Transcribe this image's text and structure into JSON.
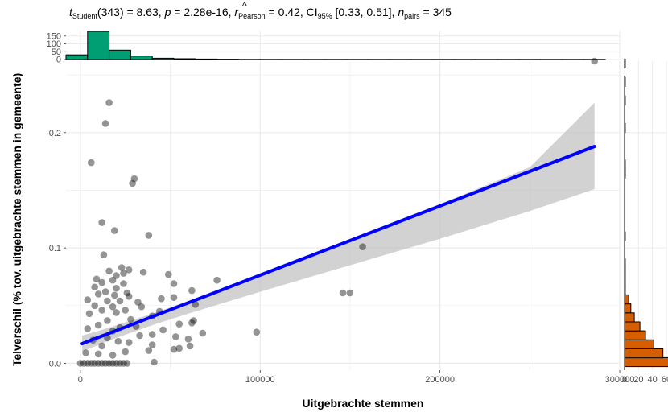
{
  "subtitle": {
    "t_label": "t",
    "t_sub": "Student",
    "t_df": "(343) = 8.63, ",
    "p_label": "p",
    "p_value": " = 2.28e-16, ",
    "r_label": "r",
    "r_hat": "^",
    "r_sub": "Pearson",
    "r_value": " = 0.42, CI",
    "ci_sub": "95%",
    "ci_value": " [0.33, 0.51], ",
    "n_label": "n",
    "n_sub": "pairs",
    "n_value": " = 345"
  },
  "colors": {
    "points": "#000000",
    "line": "#0000FF",
    "ribbon": "#bfbfbf",
    "hist_top": "#009E73",
    "hist_right": "#D55E00",
    "grid": "#ebebeb"
  },
  "chart_data": [
    {
      "type": "scatter",
      "xlabel": "Uitgebrachte stemmen",
      "ylabel": "Telverschil (% tov. uitgebrachte stemmen in gemeente)",
      "xlim": [
        -8000,
        300000
      ],
      "ylim": [
        -0.006,
        0.262
      ],
      "x_ticks": [
        0,
        100000,
        200000,
        300000
      ],
      "x_tick_labels": [
        "0",
        "100000",
        "200000",
        "300000"
      ],
      "y_ticks": [
        0.0,
        0.1,
        0.2
      ],
      "y_tick_labels": [
        "0.0",
        "0.1",
        "0.2"
      ],
      "grid": true,
      "points": [
        [
          286000,
          0.262
        ],
        [
          16000,
          0.226
        ],
        [
          14000,
          0.208
        ],
        [
          6000,
          0.174
        ],
        [
          30000,
          0.16
        ],
        [
          29000,
          0.156
        ],
        [
          12000,
          0.122
        ],
        [
          19000,
          0.115
        ],
        [
          38000,
          0.111
        ],
        [
          157000,
          0.101
        ],
        [
          13000,
          0.094
        ],
        [
          23000,
          0.083
        ],
        [
          27000,
          0.081
        ],
        [
          16000,
          0.08
        ],
        [
          35000,
          0.079
        ],
        [
          24000,
          0.078
        ],
        [
          49000,
          0.077
        ],
        [
          20000,
          0.076
        ],
        [
          9000,
          0.073
        ],
        [
          18000,
          0.072
        ],
        [
          76000,
          0.072
        ],
        [
          12000,
          0.07
        ],
        [
          24000,
          0.069
        ],
        [
          52000,
          0.069
        ],
        [
          8000,
          0.066
        ],
        [
          20000,
          0.065
        ],
        [
          62000,
          0.063
        ],
        [
          14000,
          0.062
        ],
        [
          26000,
          0.061
        ],
        [
          146000,
          0.061
        ],
        [
          150000,
          0.061
        ],
        [
          10000,
          0.06
        ],
        [
          19000,
          0.059
        ],
        [
          27000,
          0.058
        ],
        [
          52000,
          0.057
        ],
        [
          45000,
          0.056
        ],
        [
          4000,
          0.055
        ],
        [
          15000,
          0.054
        ],
        [
          22000,
          0.054
        ],
        [
          32000,
          0.053
        ],
        [
          64000,
          0.051
        ],
        [
          8000,
          0.05
        ],
        [
          18000,
          0.049
        ],
        [
          34000,
          0.049
        ],
        [
          12000,
          0.046
        ],
        [
          25000,
          0.046
        ],
        [
          44000,
          0.045
        ],
        [
          20000,
          0.044
        ],
        [
          5000,
          0.043
        ],
        [
          40000,
          0.041
        ],
        [
          28000,
          0.038
        ],
        [
          15000,
          0.037
        ],
        [
          63000,
          0.037
        ],
        [
          62000,
          0.035
        ],
        [
          55000,
          0.034
        ],
        [
          10000,
          0.033
        ],
        [
          31000,
          0.032
        ],
        [
          22000,
          0.031
        ],
        [
          4000,
          0.03
        ],
        [
          46000,
          0.029
        ],
        [
          18000,
          0.028
        ],
        [
          68000,
          0.026
        ],
        [
          98000,
          0.027
        ],
        [
          40000,
          0.025
        ],
        [
          33000,
          0.024
        ],
        [
          53000,
          0.023
        ],
        [
          15000,
          0.022
        ],
        [
          60000,
          0.021
        ],
        [
          7000,
          0.02
        ],
        [
          21000,
          0.019
        ],
        [
          27000,
          0.018
        ],
        [
          40000,
          0.016
        ],
        [
          61000,
          0.015
        ],
        [
          12000,
          0.015
        ],
        [
          55000,
          0.013
        ],
        [
          52000,
          0.012
        ],
        [
          38000,
          0.011
        ],
        [
          25000,
          0.01
        ],
        [
          3000,
          0.009
        ],
        [
          10000,
          0.008
        ],
        [
          18000,
          0.007
        ],
        [
          41000,
          0.001
        ],
        [
          0,
          0.0
        ],
        [
          2000,
          0.0
        ],
        [
          4000,
          0.0
        ],
        [
          6000,
          0.0
        ],
        [
          8000,
          0.0
        ],
        [
          10000,
          0.0
        ],
        [
          12000,
          0.0
        ],
        [
          14000,
          0.0
        ],
        [
          16000,
          0.0
        ],
        [
          18000,
          0.0
        ],
        [
          20000,
          0.0
        ],
        [
          22000,
          0.0
        ],
        [
          24000,
          0.0
        ],
        [
          26000,
          0.0
        ]
      ],
      "fit_line": [
        [
          1000,
          0.017
        ],
        [
          286000,
          0.188
        ]
      ],
      "ci_band": {
        "x": [
          1000,
          10000,
          20000,
          40000,
          60000,
          100000,
          150000,
          200000,
          250000,
          286000
        ],
        "lower": [
          0.01,
          0.016,
          0.022,
          0.033,
          0.043,
          0.062,
          0.085,
          0.108,
          0.132,
          0.151
        ],
        "upper": [
          0.024,
          0.028,
          0.033,
          0.043,
          0.054,
          0.076,
          0.106,
          0.138,
          0.17,
          0.226
        ]
      }
    },
    {
      "type": "bar",
      "orientation": "vertical",
      "position": "top",
      "x": [
        -2000,
        10000,
        22000,
        34000,
        46000,
        58000,
        70000,
        82000,
        94000,
        106000,
        118000,
        130000,
        142000,
        154000,
        166000,
        178000,
        190000,
        202000,
        214000,
        226000,
        238000,
        250000,
        262000,
        274000,
        286000
      ],
      "values": [
        30,
        180,
        60,
        22,
        8,
        5,
        3,
        2,
        1,
        1,
        1,
        1,
        1,
        1,
        1,
        1,
        1,
        1,
        1,
        1,
        1,
        1,
        1,
        1,
        1
      ],
      "bin_width": 12000,
      "y_ticks": [
        0,
        50,
        100,
        150
      ],
      "y_tick_labels": [
        "0",
        "50",
        "100",
        "150"
      ],
      "ylim": [
        0,
        185
      ]
    },
    {
      "type": "bar",
      "orientation": "horizontal",
      "position": "right",
      "y": [
        0.001,
        0.0086,
        0.0164,
        0.0242,
        0.032,
        0.0398,
        0.0476,
        0.0554,
        0.0632,
        0.071,
        0.0788,
        0.0866,
        0.0944,
        0.1022,
        0.11,
        0.1178,
        0.1256,
        0.1334,
        0.1412,
        0.149,
        0.1568,
        0.1646,
        0.1724,
        0.18,
        0.188,
        0.196,
        0.204,
        0.212,
        0.22,
        0.228,
        0.236,
        0.244,
        0.252,
        0.26
      ],
      "values": [
        80,
        55,
        42,
        30,
        22,
        14,
        9,
        6,
        1,
        1,
        1,
        1,
        0,
        0,
        1,
        0,
        0,
        0,
        0,
        0,
        0,
        1,
        1,
        0,
        0,
        0,
        1,
        0,
        0,
        1,
        0,
        1,
        0,
        1
      ],
      "bin_width": 0.0078,
      "x_ticks": [
        0,
        20,
        40,
        60
      ],
      "x_tick_labels": [
        "0",
        "20",
        "40",
        "60"
      ],
      "xlim": [
        0,
        60
      ]
    }
  ]
}
